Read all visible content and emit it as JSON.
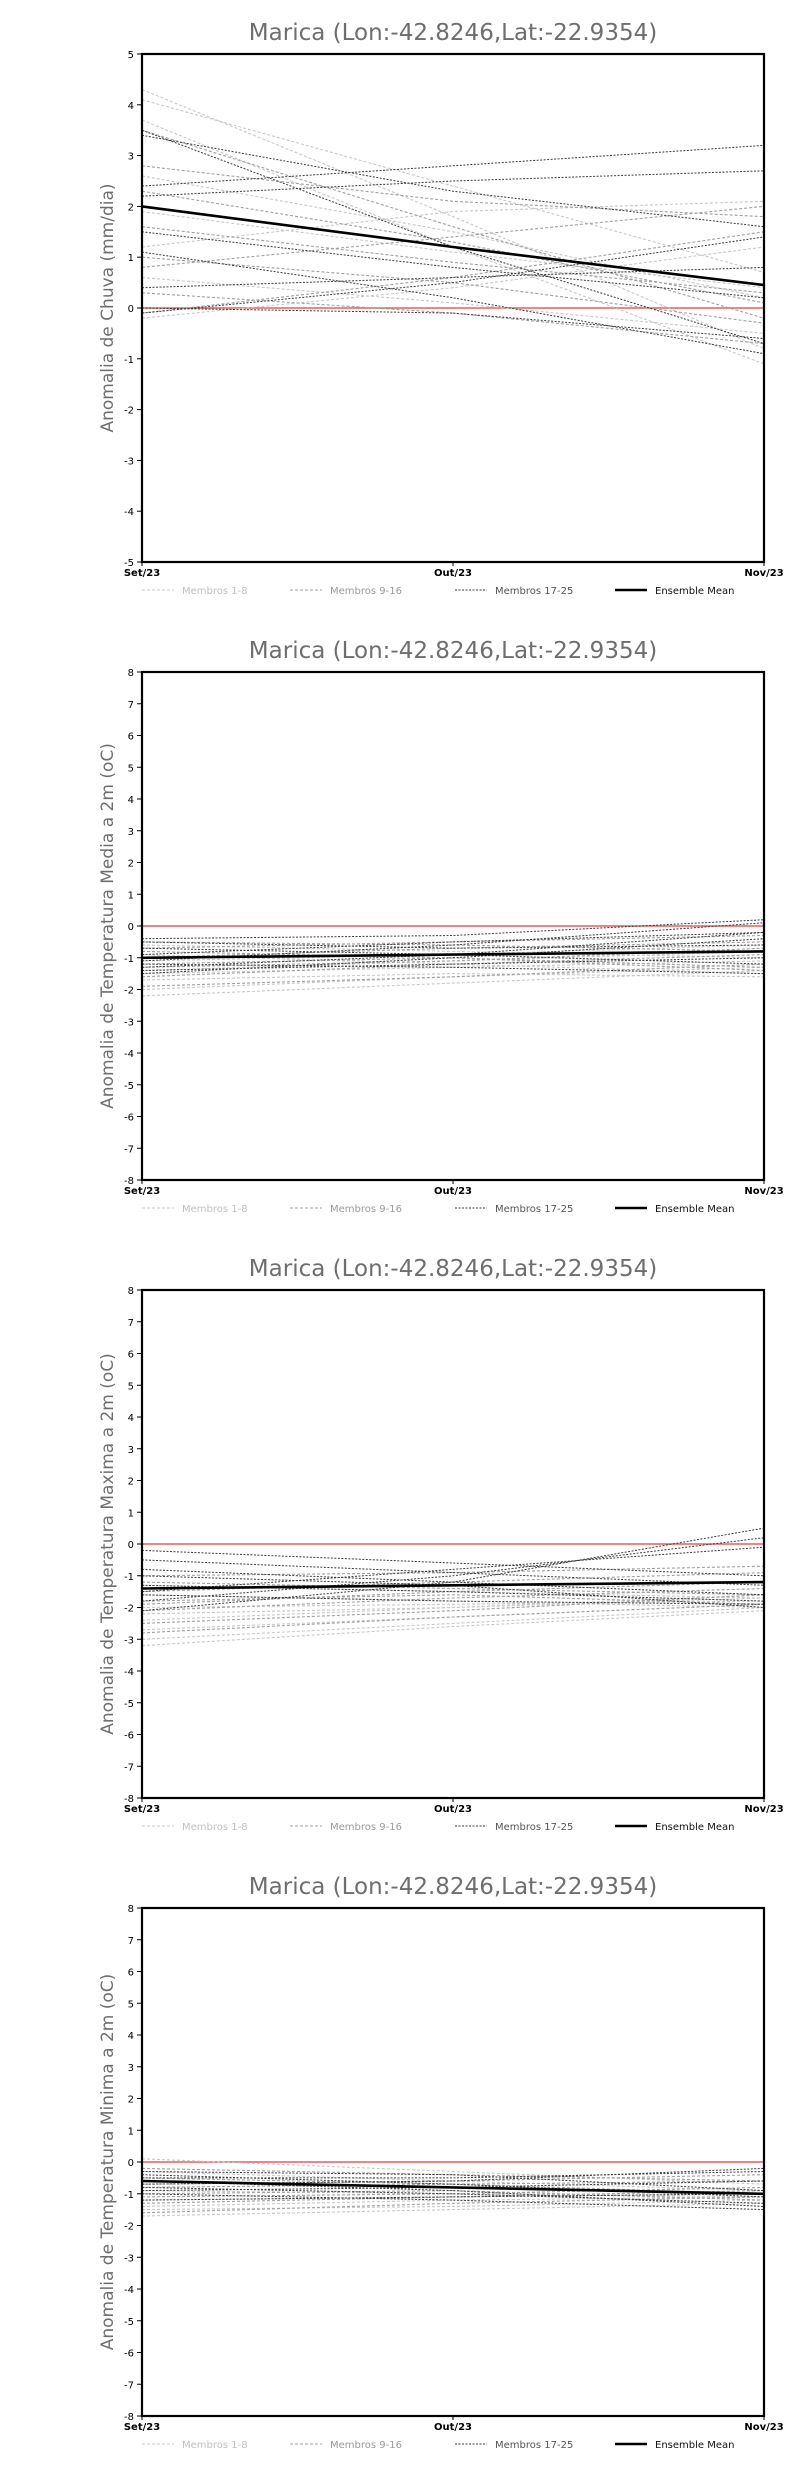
{
  "colors": {
    "members_1_8": "#c8c8c8",
    "members_9_16": "#a0a0a0",
    "members_17_25": "#3c3c3c",
    "ensemble_mean": "#000000",
    "zero_line": "#e06060",
    "frame": "#000000"
  },
  "legend": {
    "members_1_8": "Membros 1-8",
    "members_9_16": "Membros 9-16",
    "members_17_25": "Membros 17-25",
    "ensemble_mean": "Ensemble Mean"
  },
  "chart_data": [
    {
      "type": "line",
      "title": "Marica (Lon:-42.8246,Lat:-22.9354)",
      "ylabel": "Anomalia de Chuva (mm/dia)",
      "xlabel": "",
      "categories": [
        "Set/23",
        "Out/23",
        "Nov/23"
      ],
      "ylim": [
        -5,
        5
      ],
      "yticks": [
        -5,
        -4,
        -3,
        -2,
        -1,
        0,
        1,
        2,
        3,
        4,
        5
      ],
      "grid": false,
      "legend_position": "bottom",
      "series": [
        {
          "group": "members_1_8",
          "values": [
            4.3,
            1.8,
            -0.8
          ]
        },
        {
          "group": "members_1_8",
          "values": [
            4.1,
            2.4,
            0.7
          ]
        },
        {
          "group": "members_1_8",
          "values": [
            3.7,
            1.2,
            -1.1
          ]
        },
        {
          "group": "members_1_8",
          "values": [
            2.6,
            1.5,
            0.2
          ]
        },
        {
          "group": "members_1_8",
          "values": [
            1.2,
            1.9,
            2.1
          ]
        },
        {
          "group": "members_1_8",
          "values": [
            0.6,
            0.1,
            -0.5
          ]
        },
        {
          "group": "members_1_8",
          "values": [
            -0.2,
            0.4,
            1.2
          ]
        },
        {
          "group": "members_1_8",
          "values": [
            1.9,
            1.1,
            0.4
          ]
        },
        {
          "group": "members_9_16",
          "values": [
            3.5,
            1.6,
            -0.2
          ]
        },
        {
          "group": "members_9_16",
          "values": [
            2.8,
            2.1,
            1.8
          ]
        },
        {
          "group": "members_9_16",
          "values": [
            1.6,
            0.9,
            0.3
          ]
        },
        {
          "group": "members_9_16",
          "values": [
            0.3,
            -0.1,
            -0.7
          ]
        },
        {
          "group": "members_9_16",
          "values": [
            -0.1,
            0.6,
            1.5
          ]
        },
        {
          "group": "members_9_16",
          "values": [
            2.3,
            1.3,
            0.1
          ]
        },
        {
          "group": "members_9_16",
          "values": [
            1.0,
            0.5,
            -0.3
          ]
        },
        {
          "group": "members_9_16",
          "values": [
            0.8,
            1.4,
            2.0
          ]
        },
        {
          "group": "members_17_25",
          "values": [
            3.5,
            1.2,
            -0.7
          ]
        },
        {
          "group": "members_17_25",
          "values": [
            3.4,
            2.3,
            1.6
          ]
        },
        {
          "group": "members_17_25",
          "values": [
            2.4,
            2.8,
            3.2
          ]
        },
        {
          "group": "members_17_25",
          "values": [
            2.2,
            2.5,
            2.7
          ]
        },
        {
          "group": "members_17_25",
          "values": [
            1.5,
            0.8,
            0.2
          ]
        },
        {
          "group": "members_17_25",
          "values": [
            1.1,
            0.2,
            -0.9
          ]
        },
        {
          "group": "members_17_25",
          "values": [
            0.4,
            0.6,
            0.8
          ]
        },
        {
          "group": "members_17_25",
          "values": [
            0.0,
            -0.1,
            -0.6
          ]
        },
        {
          "group": "members_17_25",
          "values": [
            -0.1,
            0.5,
            1.4
          ]
        },
        {
          "name": "Ensemble Mean",
          "group": "ensemble_mean",
          "values": [
            2.0,
            1.2,
            0.45
          ]
        }
      ]
    },
    {
      "type": "line",
      "title": "Marica (Lon:-42.8246,Lat:-22.9354)",
      "ylabel": "Anomalia de Temperatura Media a 2m (oC)",
      "xlabel": "",
      "categories": [
        "Set/23",
        "Out/23",
        "Nov/23"
      ],
      "ylim": [
        -8,
        8
      ],
      "yticks": [
        -8,
        -7,
        -6,
        -5,
        -4,
        -3,
        -2,
        -1,
        0,
        1,
        2,
        3,
        4,
        5,
        6,
        7,
        8
      ],
      "grid": false,
      "legend_position": "bottom",
      "series": [
        {
          "group": "members_1_8",
          "values": [
            -2.2,
            -1.8,
            -1.4
          ]
        },
        {
          "group": "members_1_8",
          "values": [
            -2.0,
            -1.6,
            -1.3
          ]
        },
        {
          "group": "members_1_8",
          "values": [
            -1.7,
            -1.5,
            -1.6
          ]
        },
        {
          "group": "members_1_8",
          "values": [
            -1.4,
            -1.1,
            -0.8
          ]
        },
        {
          "group": "members_1_8",
          "values": [
            -1.1,
            -0.9,
            -0.6
          ]
        },
        {
          "group": "members_1_8",
          "values": [
            -0.9,
            -1.2,
            -1.5
          ]
        },
        {
          "group": "members_1_8",
          "values": [
            -0.6,
            -0.8,
            -1.0
          ]
        },
        {
          "group": "members_1_8",
          "values": [
            -1.5,
            -1.3,
            -1.1
          ]
        },
        {
          "group": "members_9_16",
          "values": [
            -1.9,
            -1.6,
            -1.2
          ]
        },
        {
          "group": "members_9_16",
          "values": [
            -1.6,
            -1.2,
            -0.9
          ]
        },
        {
          "group": "members_9_16",
          "values": [
            -1.2,
            -1.0,
            -1.3
          ]
        },
        {
          "group": "members_9_16",
          "values": [
            -1.0,
            -0.7,
            -0.5
          ]
        },
        {
          "group": "members_9_16",
          "values": [
            -0.8,
            -1.0,
            -1.4
          ]
        },
        {
          "group": "members_9_16",
          "values": [
            -0.5,
            -0.6,
            -0.8
          ]
        },
        {
          "group": "members_9_16",
          "values": [
            -1.3,
            -1.1,
            -0.7
          ]
        },
        {
          "group": "members_9_16",
          "values": [
            -0.7,
            -0.5,
            -0.3
          ]
        },
        {
          "group": "members_17_25",
          "values": [
            -1.5,
            -1.0,
            -0.4
          ]
        },
        {
          "group": "members_17_25",
          "values": [
            -1.3,
            -0.9,
            -0.2
          ]
        },
        {
          "group": "members_17_25",
          "values": [
            -1.1,
            -0.6,
            0.1
          ]
        },
        {
          "group": "members_17_25",
          "values": [
            -0.9,
            -0.5,
            -0.2
          ]
        },
        {
          "group": "members_17_25",
          "values": [
            -0.7,
            -0.9,
            -1.2
          ]
        },
        {
          "group": "members_17_25",
          "values": [
            -0.5,
            -0.7,
            -0.6
          ]
        },
        {
          "group": "members_17_25",
          "values": [
            -1.2,
            -1.3,
            -1.5
          ]
        },
        {
          "group": "members_17_25",
          "values": [
            -0.4,
            -0.3,
            0.2
          ]
        },
        {
          "group": "members_17_25",
          "values": [
            -1.4,
            -1.2,
            -1.0
          ]
        },
        {
          "name": "Ensemble Mean",
          "group": "ensemble_mean",
          "values": [
            -1.0,
            -0.9,
            -0.8
          ]
        }
      ]
    },
    {
      "type": "line",
      "title": "Marica (Lon:-42.8246,Lat:-22.9354)",
      "ylabel": "Anomalia de Temperatura Maxima a 2m (oC)",
      "xlabel": "",
      "categories": [
        "Set/23",
        "Out/23",
        "Nov/23"
      ],
      "ylim": [
        -8,
        8
      ],
      "yticks": [
        -8,
        -7,
        -6,
        -5,
        -4,
        -3,
        -2,
        -1,
        0,
        1,
        2,
        3,
        4,
        5,
        6,
        7,
        8
      ],
      "grid": false,
      "legend_position": "bottom",
      "series": [
        {
          "group": "members_1_8",
          "values": [
            -3.2,
            -2.6,
            -2.1
          ]
        },
        {
          "group": "members_1_8",
          "values": [
            -3.0,
            -2.5,
            -2.0
          ]
        },
        {
          "group": "members_1_8",
          "values": [
            -2.7,
            -2.3,
            -1.9
          ]
        },
        {
          "group": "members_1_8",
          "values": [
            -2.4,
            -2.0,
            -1.7
          ]
        },
        {
          "group": "members_1_8",
          "values": [
            -2.0,
            -1.9,
            -1.8
          ]
        },
        {
          "group": "members_1_8",
          "values": [
            -1.6,
            -1.8,
            -2.0
          ]
        },
        {
          "group": "members_1_8",
          "values": [
            -1.3,
            -1.5,
            -1.7
          ]
        },
        {
          "group": "members_1_8",
          "values": [
            -2.2,
            -2.0,
            -1.6
          ]
        },
        {
          "group": "members_9_16",
          "values": [
            -2.8,
            -2.3,
            -1.9
          ]
        },
        {
          "group": "members_9_16",
          "values": [
            -2.5,
            -2.1,
            -1.6
          ]
        },
        {
          "group": "members_9_16",
          "values": [
            -2.1,
            -1.7,
            -1.4
          ]
        },
        {
          "group": "members_9_16",
          "values": [
            -1.8,
            -1.6,
            -1.9
          ]
        },
        {
          "group": "members_9_16",
          "values": [
            -1.5,
            -1.2,
            -0.9
          ]
        },
        {
          "group": "members_9_16",
          "values": [
            -1.2,
            -1.4,
            -1.6
          ]
        },
        {
          "group": "members_9_16",
          "values": [
            -1.9,
            -1.5,
            -1.2
          ]
        },
        {
          "group": "members_9_16",
          "values": [
            -1.0,
            -0.9,
            -0.7
          ]
        },
        {
          "group": "members_17_25",
          "values": [
            -2.1,
            -1.2,
            0.5
          ]
        },
        {
          "group": "members_17_25",
          "values": [
            -1.8,
            -1.0,
            0.2
          ]
        },
        {
          "group": "members_17_25",
          "values": [
            -1.5,
            -0.8,
            -0.1
          ]
        },
        {
          "group": "members_17_25",
          "values": [
            -1.3,
            -1.5,
            -1.8
          ]
        },
        {
          "group": "members_17_25",
          "values": [
            -0.8,
            -1.2,
            -1.6
          ]
        },
        {
          "group": "members_17_25",
          "values": [
            -0.5,
            -0.9,
            -1.3
          ]
        },
        {
          "group": "members_17_25",
          "values": [
            -0.2,
            -0.6,
            -1.0
          ]
        },
        {
          "group": "members_17_25",
          "values": [
            -1.0,
            -1.3,
            -2.0
          ]
        },
        {
          "group": "members_17_25",
          "values": [
            -1.6,
            -1.8,
            -1.9
          ]
        },
        {
          "name": "Ensemble Mean",
          "group": "ensemble_mean",
          "values": [
            -1.4,
            -1.3,
            -1.2
          ]
        }
      ]
    },
    {
      "type": "line",
      "title": "Marica (Lon:-42.8246,Lat:-22.9354)",
      "ylabel": "Anomalia de Temperatura Minima a 2m (oC)",
      "xlabel": "",
      "categories": [
        "Set/23",
        "Out/23",
        "Nov/23"
      ],
      "ylim": [
        -8,
        8
      ],
      "yticks": [
        -8,
        -7,
        -6,
        -5,
        -4,
        -3,
        -2,
        -1,
        0,
        1,
        2,
        3,
        4,
        5,
        6,
        7,
        8
      ],
      "grid": false,
      "legend_position": "bottom",
      "series": [
        {
          "group": "members_1_8",
          "values": [
            -1.7,
            -1.5,
            -1.3
          ]
        },
        {
          "group": "members_1_8",
          "values": [
            -1.5,
            -1.4,
            -1.2
          ]
        },
        {
          "group": "members_1_8",
          "values": [
            -1.2,
            -1.1,
            -1.0
          ]
        },
        {
          "group": "members_1_8",
          "values": [
            -0.9,
            -1.0,
            -1.1
          ]
        },
        {
          "group": "members_1_8",
          "values": [
            -0.6,
            -0.8,
            -1.0
          ]
        },
        {
          "group": "members_1_8",
          "values": [
            -0.3,
            -0.6,
            -0.9
          ]
        },
        {
          "group": "members_1_8",
          "values": [
            0.1,
            -0.3,
            -0.7
          ]
        },
        {
          "group": "members_1_8",
          "values": [
            -1.4,
            -1.2,
            -1.1
          ]
        },
        {
          "group": "members_9_16",
          "values": [
            -1.6,
            -1.3,
            -1.1
          ]
        },
        {
          "group": "members_9_16",
          "values": [
            -1.3,
            -1.1,
            -0.9
          ]
        },
        {
          "group": "members_9_16",
          "values": [
            -1.0,
            -0.9,
            -1.2
          ]
        },
        {
          "group": "members_9_16",
          "values": [
            -0.8,
            -0.7,
            -0.6
          ]
        },
        {
          "group": "members_9_16",
          "values": [
            -0.5,
            -0.7,
            -1.0
          ]
        },
        {
          "group": "members_9_16",
          "values": [
            -0.2,
            -0.4,
            -0.6
          ]
        },
        {
          "group": "members_9_16",
          "values": [
            -1.1,
            -1.0,
            -0.8
          ]
        },
        {
          "group": "members_9_16",
          "values": [
            -0.7,
            -0.6,
            -0.4
          ]
        },
        {
          "group": "members_17_25",
          "values": [
            -0.8,
            -1.0,
            -1.3
          ]
        },
        {
          "group": "members_17_25",
          "values": [
            -0.6,
            -0.9,
            -1.4
          ]
        },
        {
          "group": "members_17_25",
          "values": [
            -0.4,
            -0.7,
            -1.1
          ]
        },
        {
          "group": "members_17_25",
          "values": [
            -0.9,
            -0.8,
            -0.6
          ]
        },
        {
          "group": "members_17_25",
          "values": [
            -0.5,
            -0.5,
            -0.3
          ]
        },
        {
          "group": "members_17_25",
          "values": [
            -1.2,
            -1.1,
            -1.0
          ]
        },
        {
          "group": "members_17_25",
          "values": [
            -0.3,
            -0.4,
            -0.9
          ]
        },
        {
          "group": "members_17_25",
          "values": [
            -1.0,
            -1.2,
            -1.5
          ]
        },
        {
          "group": "members_17_25",
          "values": [
            -0.7,
            -0.6,
            -0.2
          ]
        },
        {
          "name": "Ensemble Mean",
          "group": "ensemble_mean",
          "values": [
            -0.6,
            -0.8,
            -1.0
          ]
        }
      ]
    }
  ]
}
